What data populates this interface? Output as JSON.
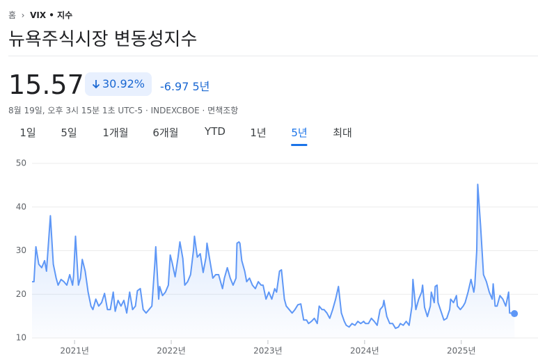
{
  "breadcrumb": {
    "home": "홈",
    "current": "VIX • 지수"
  },
  "title": "뉴욕주식시장 변동성지수",
  "price": "15.57",
  "change_percent": "30.92%",
  "change": "-6.97",
  "change_period": "5년",
  "timestamp": "8월 19일, 오후 3시 15분 1초 UTC-5 · INDEXCBOE · 면책조항",
  "tabs": [
    "1일",
    "5일",
    "1개월",
    "6개월",
    "YTD",
    "1년",
    "5년",
    "최대"
  ],
  "selected_tab": 6,
  "chart_data": {
    "type": "line",
    "x": [
      2020.56,
      2020.58,
      2020.6,
      2020.63,
      2020.66,
      2020.69,
      2020.71,
      2020.75,
      2020.78,
      2020.81,
      2020.83,
      2020.86,
      2020.89,
      2020.92,
      2020.95,
      2020.98,
      2020.99,
      2021.01,
      2021.04,
      2021.06,
      2021.08,
      2021.11,
      2021.14,
      2021.17,
      2021.19,
      2021.22,
      2021.25,
      2021.28,
      2021.31,
      2021.34,
      2021.37,
      2021.4,
      2021.42,
      2021.45,
      2021.48,
      2021.51,
      2021.54,
      2021.57,
      2021.6,
      2021.63,
      2021.65,
      2021.68,
      2021.71,
      2021.74,
      2021.77,
      2021.8,
      2021.83,
      2021.84,
      2021.87,
      2021.88,
      2021.91,
      2021.94,
      2021.97,
      2021.99,
      2022.01,
      2022.04,
      2022.07,
      2022.09,
      2022.12,
      2022.14,
      2022.17,
      2022.2,
      2022.23,
      2022.24,
      2022.27,
      2022.3,
      2022.33,
      2022.36,
      2022.37,
      2022.4,
      2022.43,
      2022.46,
      2022.49,
      2022.53,
      2022.55,
      2022.58,
      2022.61,
      2022.64,
      2022.67,
      2022.68,
      2022.7,
      2022.71,
      2022.73,
      2022.76,
      2022.78,
      2022.81,
      2022.84,
      2022.87,
      2022.9,
      2022.93,
      2022.95,
      2022.98,
      2023.01,
      2023.04,
      2023.07,
      2023.09,
      2023.12,
      2023.14,
      2023.17,
      2023.19,
      2023.22,
      2023.25,
      2023.28,
      2023.31,
      2023.34,
      2023.37,
      2023.4,
      2023.42,
      2023.45,
      2023.48,
      2023.51,
      2023.53,
      2023.56,
      2023.58,
      2023.61,
      2023.64,
      2023.67,
      2023.7,
      2023.73,
      2023.76,
      2023.79,
      2023.81,
      2023.84,
      2023.87,
      2023.9,
      2023.93,
      2023.96,
      2023.99,
      2024.01,
      2024.04,
      2024.07,
      2024.1,
      2024.13,
      2024.16,
      2024.19,
      2024.2,
      2024.23,
      2024.26,
      2024.29,
      2024.32,
      2024.35,
      2024.37,
      2024.4,
      2024.43,
      2024.46,
      2024.49,
      2024.5,
      2024.53,
      2024.56,
      2024.59,
      2024.6,
      2024.62,
      2024.65,
      2024.68,
      2024.69,
      2024.72,
      2024.73,
      2024.75,
      2024.76,
      2024.79,
      2024.82,
      2024.85,
      2024.88,
      2024.89,
      2024.92,
      2024.95,
      2024.96,
      2024.99,
      2025.02,
      2025.04,
      2025.07,
      2025.1,
      2025.13,
      2025.14,
      2025.16,
      2025.17,
      2025.2,
      2025.23,
      2025.26,
      2025.29,
      2025.32,
      2025.33,
      2025.35,
      2025.37,
      2025.4,
      2025.43,
      2025.46,
      2025.49,
      2025.5,
      2025.54,
      2025.55
    ],
    "series": [
      {
        "color": "#5e97f6",
        "values": [
          22.9,
          22.9,
          30.9,
          26.9,
          26.1,
          27.7,
          25.3,
          38.0,
          26.9,
          23.7,
          22.1,
          23.4,
          22.9,
          22.1,
          24.5,
          22.1,
          24.2,
          33.3,
          22.1,
          23.7,
          28.0,
          25.3,
          20.5,
          17.3,
          16.5,
          18.9,
          17.3,
          18.1,
          20.2,
          16.5,
          16.5,
          20.5,
          16.1,
          18.6,
          17.3,
          18.6,
          15.7,
          20.5,
          16.5,
          17.3,
          20.8,
          21.3,
          16.5,
          15.7,
          16.5,
          17.3,
          26.9,
          30.9,
          18.9,
          21.8,
          19.7,
          20.5,
          22.1,
          29.0,
          27.2,
          24.0,
          28.5,
          32.0,
          28.2,
          22.1,
          22.9,
          24.5,
          30.1,
          33.3,
          28.5,
          29.3,
          25.0,
          28.5,
          31.7,
          27.7,
          23.7,
          24.5,
          24.5,
          21.3,
          23.7,
          26.1,
          23.7,
          22.1,
          23.7,
          31.7,
          32.0,
          31.7,
          27.7,
          25.3,
          22.9,
          23.7,
          22.1,
          21.3,
          22.9,
          22.1,
          22.1,
          18.9,
          20.5,
          18.9,
          21.3,
          20.5,
          25.3,
          25.6,
          18.9,
          17.3,
          16.5,
          15.7,
          16.5,
          17.6,
          17.8,
          14.1,
          14.1,
          13.3,
          13.8,
          14.5,
          13.3,
          17.3,
          16.5,
          16.5,
          15.7,
          14.5,
          16.5,
          18.9,
          21.8,
          15.7,
          13.8,
          12.9,
          12.5,
          13.3,
          12.9,
          13.8,
          13.3,
          13.8,
          13.3,
          13.3,
          14.5,
          13.8,
          12.9,
          16.5,
          17.3,
          18.6,
          14.9,
          13.3,
          13.3,
          12.2,
          12.5,
          13.3,
          12.9,
          13.8,
          12.9,
          17.3,
          23.4,
          16.5,
          18.9,
          20.5,
          22.1,
          17.0,
          14.9,
          17.3,
          20.5,
          18.1,
          21.8,
          22.1,
          18.1,
          16.1,
          14.1,
          14.5,
          16.5,
          18.9,
          18.1,
          19.7,
          17.3,
          16.5,
          17.3,
          18.1,
          20.5,
          23.4,
          20.5,
          22.1,
          30.1,
          45.2,
          35.7,
          24.5,
          22.9,
          20.5,
          18.9,
          22.4,
          17.3,
          17.3,
          19.7,
          18.9,
          17.3,
          20.5,
          15.7,
          15.7,
          15.57
        ]
      }
    ],
    "xlim": [
      2020.56,
      2025.7
    ],
    "xticks": [
      {
        "value": 2021,
        "label": "2021년"
      },
      {
        "value": 2022,
        "label": "2022년"
      },
      {
        "value": 2023,
        "label": "2023년"
      },
      {
        "value": 2024,
        "label": "2024년"
      },
      {
        "value": 2025,
        "label": "2025년"
      }
    ],
    "ylim": [
      10,
      50
    ],
    "yticks": [
      10,
      20,
      30,
      40,
      50
    ],
    "grid": true
  }
}
